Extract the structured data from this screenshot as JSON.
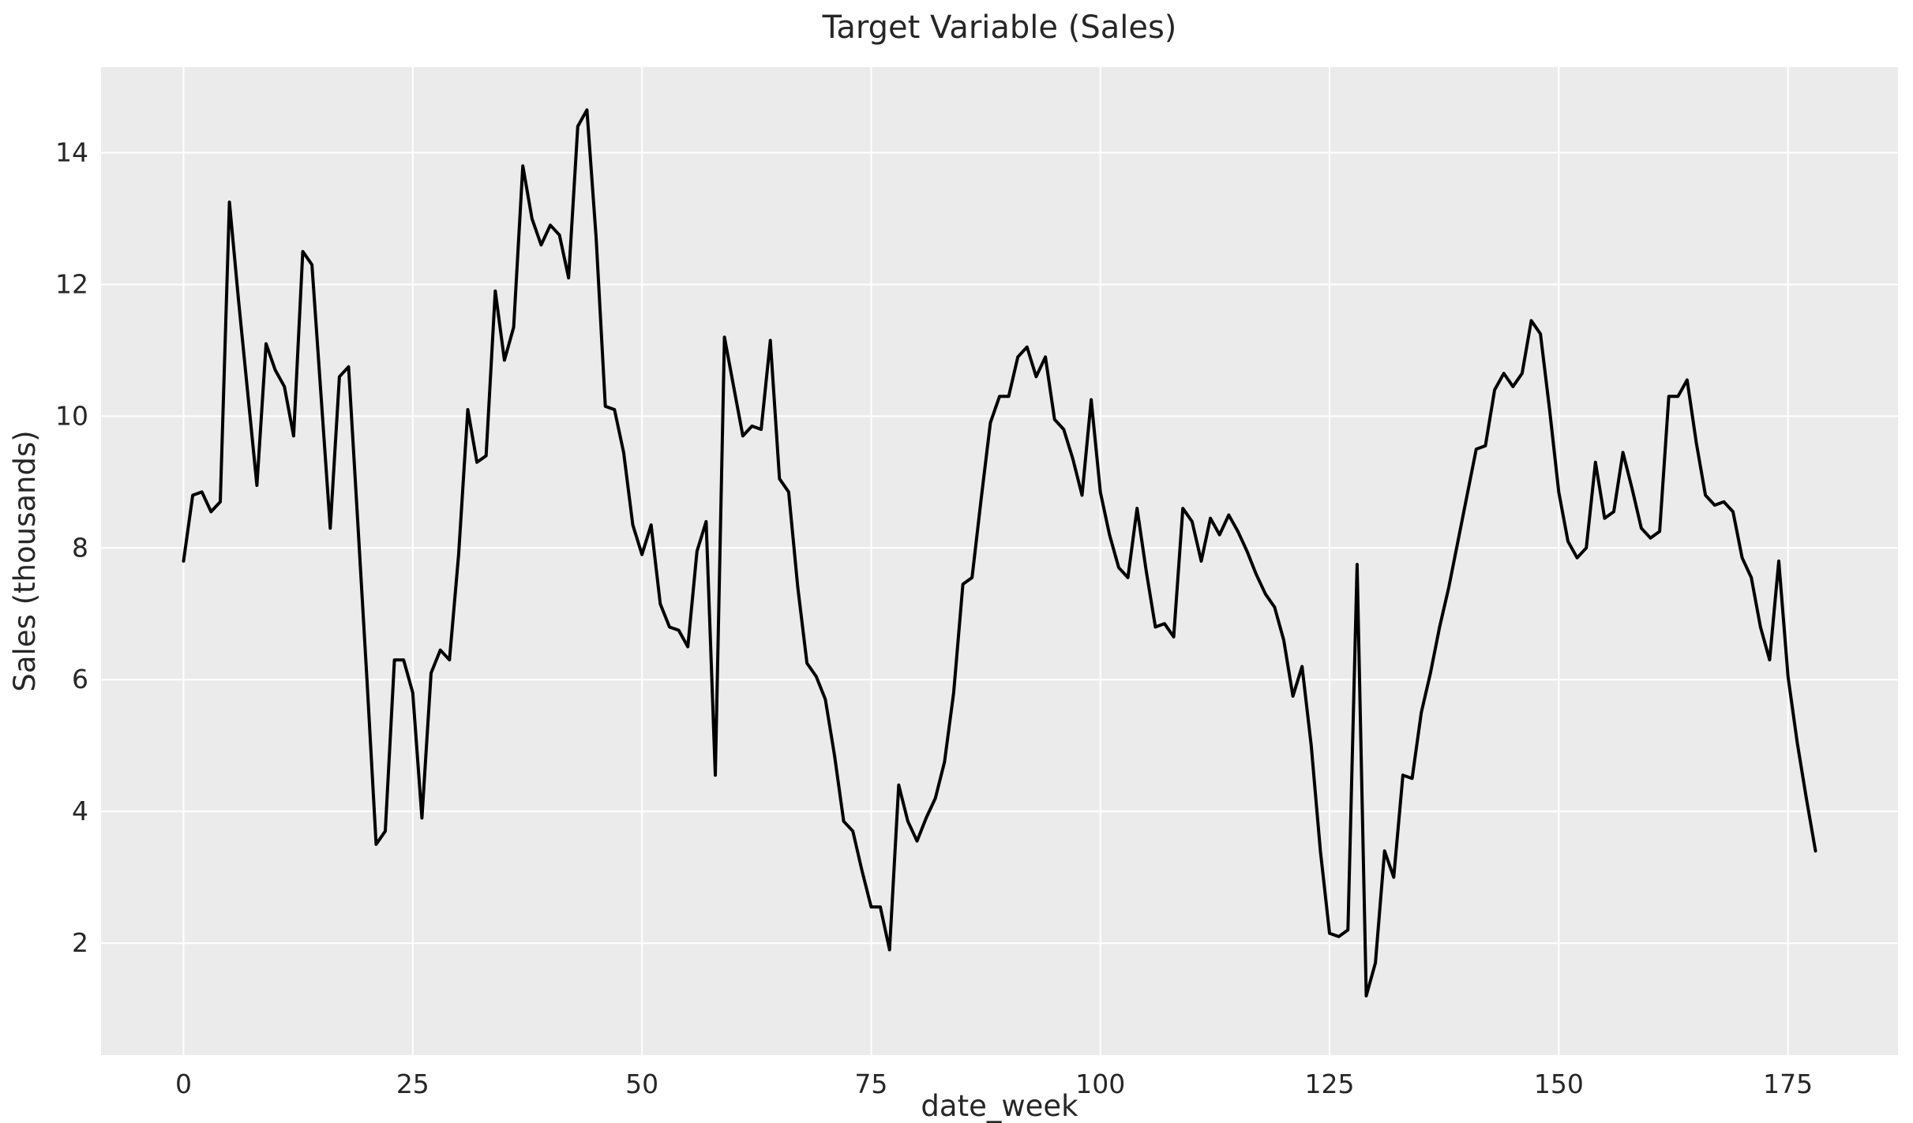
{
  "chart_data": {
    "type": "line",
    "title": "Target Variable (Sales)",
    "xlabel": "date_week",
    "ylabel": "Sales (thousands)",
    "x_start": 0,
    "x_step": 1,
    "values": [
      7.8,
      8.8,
      8.85,
      8.55,
      8.7,
      13.25,
      11.75,
      10.35,
      8.95,
      11.1,
      10.7,
      10.45,
      9.7,
      12.5,
      12.3,
      10.3,
      8.3,
      10.6,
      10.75,
      8.4,
      6.0,
      3.5,
      3.7,
      6.3,
      6.3,
      5.8,
      3.9,
      6.1,
      6.45,
      6.3,
      7.9,
      10.1,
      9.3,
      9.4,
      11.9,
      10.85,
      11.35,
      13.8,
      13.0,
      12.6,
      12.9,
      12.75,
      12.1,
      14.4,
      14.65,
      12.7,
      10.15,
      10.1,
      9.45,
      8.35,
      7.9,
      8.35,
      7.15,
      6.8,
      6.75,
      6.5,
      7.95,
      8.4,
      4.55,
      11.2,
      10.45,
      9.7,
      9.85,
      9.8,
      11.15,
      9.05,
      8.85,
      7.4,
      6.25,
      6.05,
      5.7,
      4.85,
      3.85,
      3.7,
      3.1,
      2.55,
      2.55,
      1.9,
      4.4,
      3.85,
      3.55,
      3.9,
      4.2,
      4.75,
      5.8,
      7.45,
      7.55,
      8.75,
      9.9,
      10.3,
      10.3,
      10.9,
      11.05,
      10.6,
      10.9,
      9.95,
      9.8,
      9.35,
      8.8,
      10.25,
      8.85,
      8.2,
      7.7,
      7.55,
      8.6,
      7.65,
      6.8,
      6.85,
      6.65,
      8.6,
      8.4,
      7.8,
      8.45,
      8.2,
      8.5,
      8.25,
      7.95,
      7.6,
      7.3,
      7.1,
      6.6,
      5.75,
      6.2,
      5.0,
      3.4,
      2.15,
      2.1,
      2.2,
      7.75,
      1.2,
      1.7,
      3.4,
      3.0,
      4.55,
      4.5,
      5.5,
      6.1,
      6.8,
      7.4,
      8.1,
      8.8,
      9.5,
      9.55,
      10.4,
      10.65,
      10.45,
      10.65,
      11.45,
      11.25,
      10.1,
      8.85,
      8.1,
      7.85,
      8.0,
      9.3,
      8.45,
      8.55,
      9.45,
      8.9,
      8.3,
      8.15,
      8.25,
      10.3,
      10.3,
      10.55,
      9.6,
      8.8,
      8.65,
      8.7,
      8.55,
      7.85,
      7.55,
      6.8,
      6.3,
      7.8,
      6.05,
      5.05,
      4.2,
      3.4
    ],
    "xlim": [
      -9,
      187
    ],
    "ylim": [
      0.3,
      15.3
    ],
    "x_ticks": [
      0,
      25,
      50,
      75,
      100,
      125,
      150,
      175
    ],
    "y_ticks": [
      2,
      4,
      6,
      8,
      10,
      12,
      14
    ],
    "grid": true,
    "legend_position": "none",
    "line_color": "#000000",
    "plot_background": "#ebebeb",
    "grid_color": "#ffffff",
    "text_color": "#262626"
  }
}
